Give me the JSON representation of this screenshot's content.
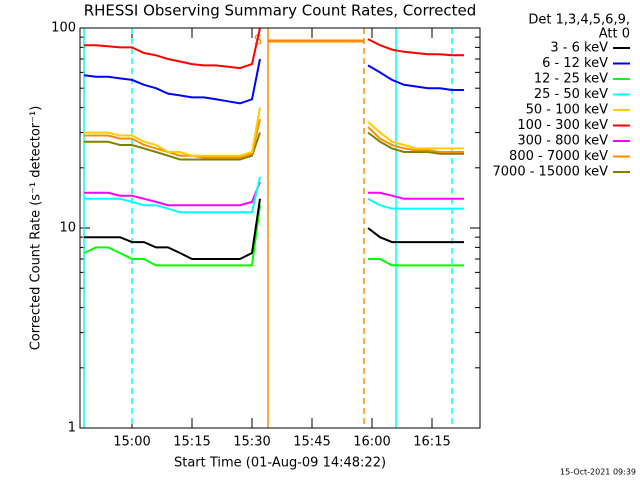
{
  "chart_data": {
    "type": "line",
    "title": "RHESSI Observing Summary Count Rates, Corrected",
    "x_label": "Start Time (01-Aug-09 14:48:22)",
    "y_label": "Corrected Count Rate (s⁻¹ detector⁻¹)",
    "legend_title": [
      "Det 1,3,4,5,6,9,",
      "Att 0"
    ],
    "footer": "15-Oct-2021 09:39",
    "log_y": true,
    "ylim": [
      1,
      100
    ],
    "yticks": [
      1,
      10,
      100
    ],
    "xlim": [
      "14:47",
      "16:27"
    ],
    "xticks": [
      "15:00",
      "15:15",
      "15:30",
      "15:45",
      "16:00",
      "16:15"
    ],
    "legend": "outside-right",
    "x": [
      "14:48",
      "14:51",
      "14:54",
      "14:57",
      "15:00",
      "15:03",
      "15:06",
      "15:09",
      "15:12",
      "15:15",
      "15:18",
      "15:21",
      "15:24",
      "15:27",
      "15:30",
      "15:32",
      "15:45",
      "15:59",
      "16:02",
      "16:05",
      "16:08",
      "16:11",
      "16:14",
      "16:17",
      "16:20",
      "16:23"
    ],
    "series": [
      {
        "name": "3 - 6 keV",
        "color": "#000000",
        "values": [
          9,
          9,
          9,
          9,
          8.5,
          8.5,
          8,
          8,
          7.5,
          7,
          7,
          7,
          7,
          7,
          7.5,
          14,
          null,
          10,
          9,
          8.5,
          8.5,
          8.5,
          8.5,
          8.5,
          8.5,
          8.5
        ]
      },
      {
        "name": "6 - 12 keV",
        "color": "#0000ff",
        "values": [
          58,
          57,
          57,
          56,
          55,
          52,
          50,
          47,
          46,
          45,
          45,
          44,
          43,
          42,
          44,
          70,
          null,
          65,
          60,
          55,
          52,
          51,
          50,
          50,
          49,
          49
        ]
      },
      {
        "name": "12 - 25 keV",
        "color": "#00ff00",
        "values": [
          7.5,
          8,
          8,
          7.5,
          7,
          7,
          6.5,
          6.5,
          6.5,
          6.5,
          6.5,
          6.5,
          6.5,
          6.5,
          6.5,
          13,
          null,
          7,
          7,
          6.5,
          6.5,
          6.5,
          6.5,
          6.5,
          6.5,
          6.5
        ]
      },
      {
        "name": "25 - 50 keV",
        "color": "#00ffff",
        "values": [
          14,
          14,
          14,
          14,
          13.5,
          13,
          13,
          12.5,
          12,
          12,
          12,
          12,
          12,
          12,
          12,
          18,
          null,
          14,
          13,
          12.5,
          12.5,
          12.5,
          12.5,
          12.5,
          12.5,
          12.5
        ]
      },
      {
        "name": "50 - 100 keV",
        "color": "#ffcc00",
        "values": [
          30,
          30,
          30,
          29,
          29,
          27,
          26,
          24,
          24,
          23,
          23,
          23,
          23,
          23,
          24,
          40,
          null,
          34,
          30,
          27,
          26,
          25,
          25,
          25,
          25,
          25
        ]
      },
      {
        "name": "100 - 300 keV",
        "color": "#ff0000",
        "values": [
          82,
          82,
          81,
          80,
          80,
          75,
          73,
          70,
          68,
          66,
          65,
          65,
          64,
          63,
          66,
          100,
          null,
          88,
          82,
          78,
          76,
          75,
          74,
          74,
          73,
          73
        ]
      },
      {
        "name": "300 - 800 keV",
        "color": "#ff00ff",
        "values": [
          15,
          15,
          15,
          14.5,
          14.5,
          14,
          13.5,
          13,
          13,
          13,
          13,
          13,
          13,
          13,
          13.5,
          17,
          null,
          15,
          15,
          14.5,
          14,
          14,
          14,
          14,
          14,
          14
        ]
      },
      {
        "name": "800 - 7000 keV",
        "color": "#ff8c00",
        "values": [
          29,
          29,
          29,
          28,
          28,
          26,
          25,
          24,
          23,
          23,
          22.5,
          22.5,
          22.5,
          22.5,
          23.5,
          35,
          null,
          32,
          28,
          26,
          25,
          24.5,
          24.5,
          24,
          24,
          24
        ]
      },
      {
        "name": "7000 - 15000 keV",
        "color": "#808000",
        "values": [
          27,
          27,
          27,
          26,
          26,
          25,
          24,
          23,
          22,
          22,
          22,
          22,
          22,
          22,
          23,
          30,
          null,
          30,
          27,
          25,
          24,
          24,
          24,
          23.5,
          23.5,
          23.5
        ]
      }
    ],
    "vlines": [
      {
        "x": "14:48",
        "color": "#00ffff",
        "dashed": false
      },
      {
        "x": "15:00",
        "color": "#00ffff",
        "dashed": true
      },
      {
        "x": "15:34",
        "color": "#ff8c00",
        "dashed": false
      },
      {
        "x": "15:58",
        "color": "#ff8c00",
        "dashed": true
      },
      {
        "x": "16:06",
        "color": "#00ffff",
        "dashed": false
      },
      {
        "x": "16:20",
        "color": "#00ffff",
        "dashed": true
      }
    ],
    "saa_bar": {
      "label": "S",
      "start": "15:34",
      "end": "15:58",
      "color": "#ff8c00"
    }
  }
}
